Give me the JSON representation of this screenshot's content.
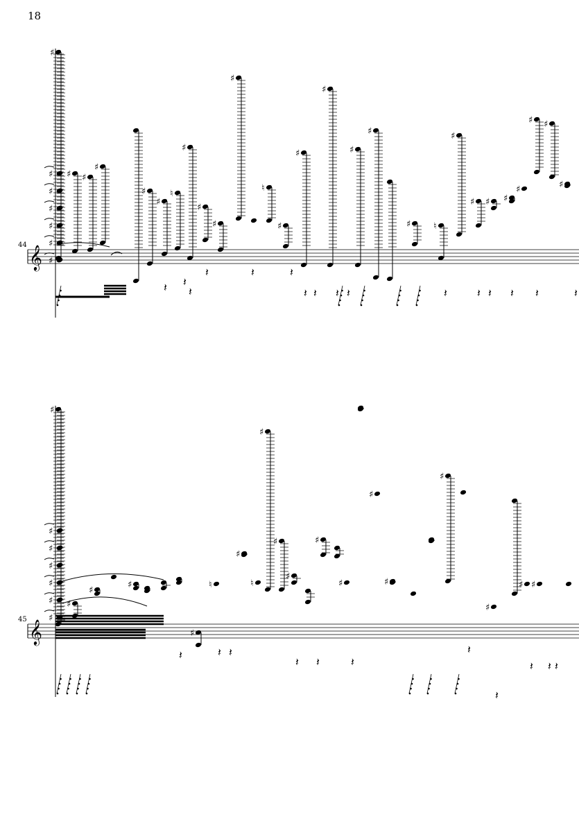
{
  "page": {
    "number": "18"
  },
  "systems": [
    {
      "measure_number": "44",
      "clef": "treble"
    },
    {
      "measure_number": "45",
      "clef": "treble"
    }
  ],
  "symbols": {
    "sharp": "♯",
    "natural": "♮",
    "quarter_rest": "𝄽",
    "eighth_rest": "𝄾",
    "treble_clef": "𝄞"
  }
}
